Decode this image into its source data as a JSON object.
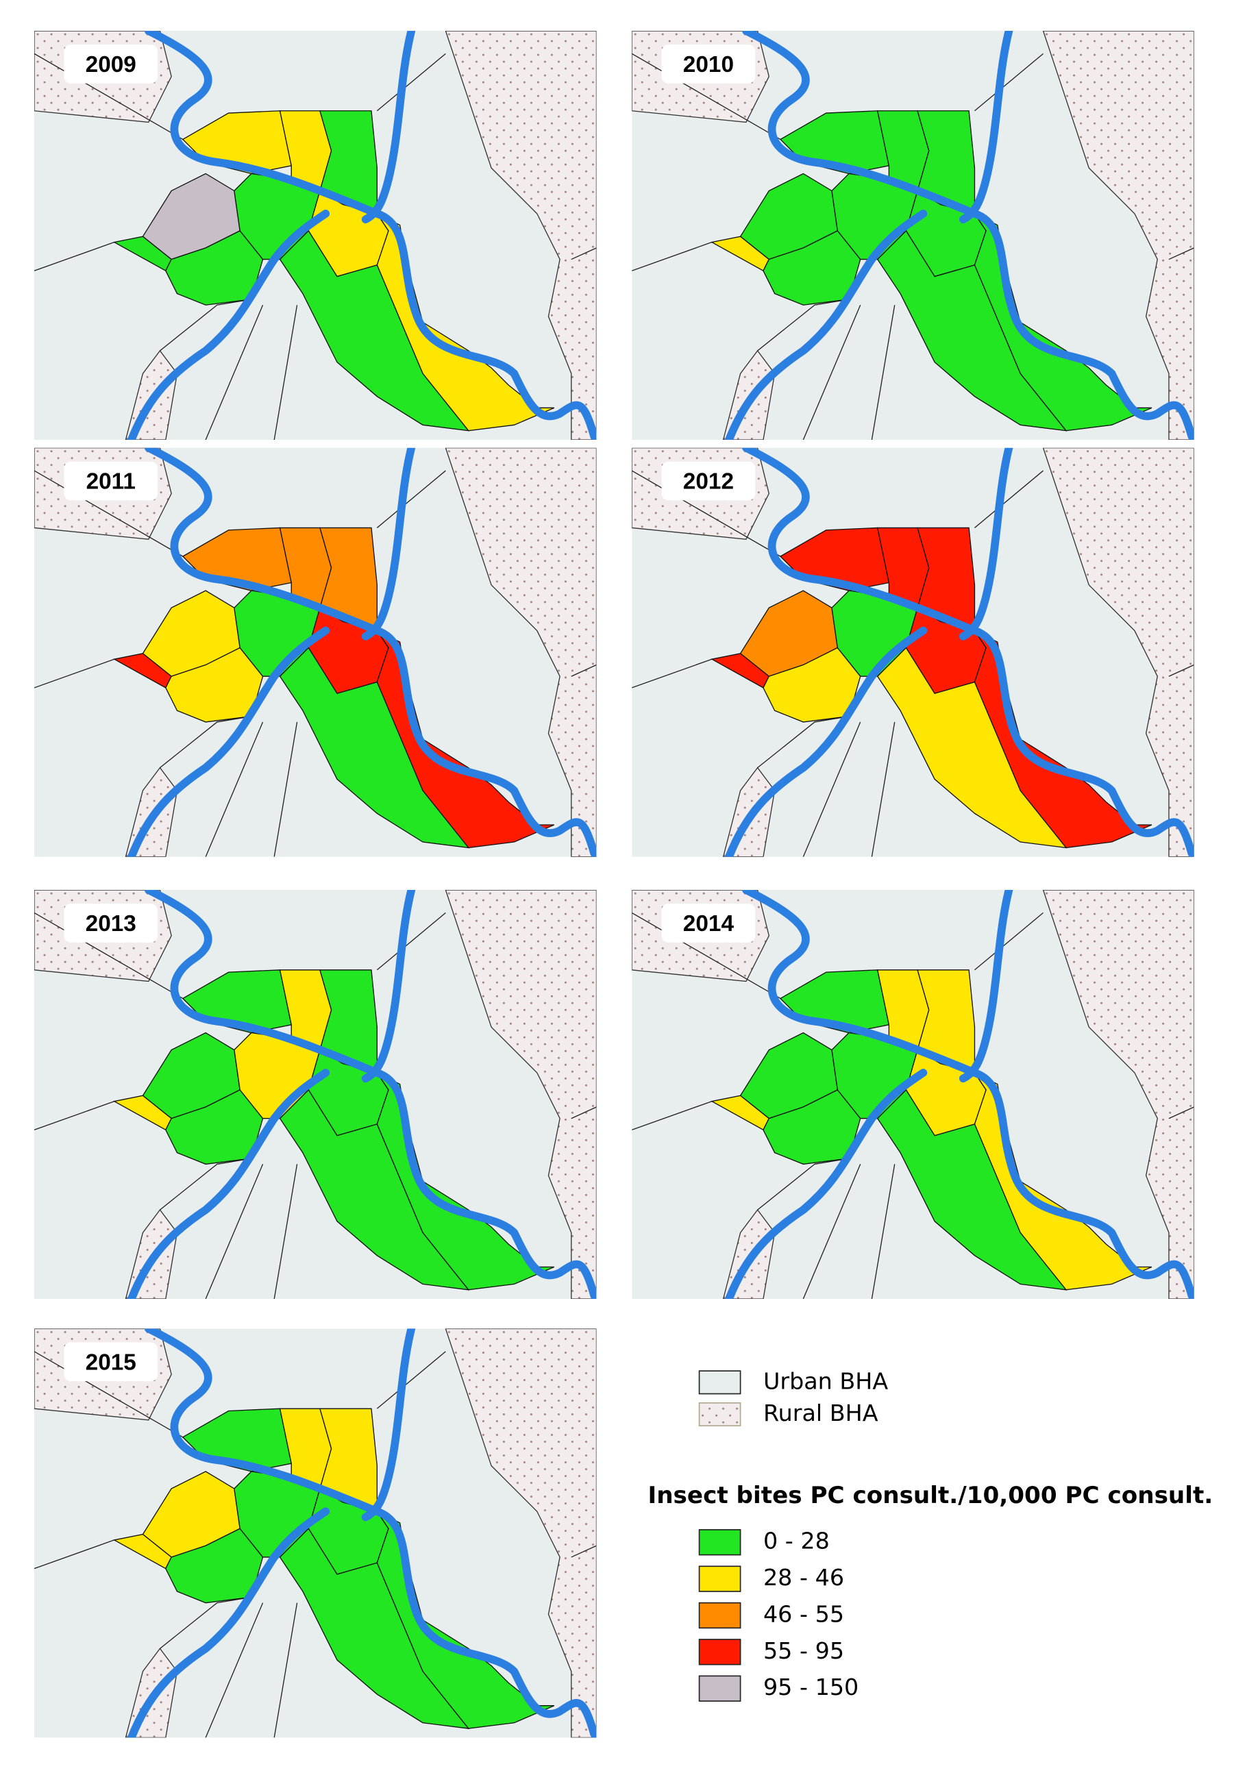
{
  "panels": [
    {
      "year": "2009",
      "district_colors": [
        "#ffe600",
        "#ffe600",
        "#22e622",
        "#c8bec8",
        "#22e622",
        "#22e622",
        "#22e622",
        "#ffe600",
        "#ffe600",
        "#22e622"
      ]
    },
    {
      "year": "2010",
      "district_colors": [
        "#22e622",
        "#22e622",
        "#22e622",
        "#22e622",
        "#ffe600",
        "#22e622",
        "#22e622",
        "#22e622",
        "#22e622",
        "#22e622"
      ]
    },
    {
      "year": "2011",
      "district_colors": [
        "#ff8c00",
        "#ff8c00",
        "#ff8c00",
        "#ffe600",
        "#ff1a00",
        "#ffe600",
        "#22e622",
        "#ff1a00",
        "#ff1a00",
        "#22e622"
      ]
    },
    {
      "year": "2012",
      "district_colors": [
        "#ff1a00",
        "#ff1a00",
        "#ff1a00",
        "#ff8c00",
        "#ff1a00",
        "#ffe600",
        "#22e622",
        "#ff1a00",
        "#ff1a00",
        "#ffe600"
      ]
    },
    {
      "year": "2013",
      "district_colors": [
        "#22e622",
        "#ffe600",
        "#22e622",
        "#22e622",
        "#ffe600",
        "#22e622",
        "#ffe600",
        "#22e622",
        "#22e622",
        "#22e622"
      ]
    },
    {
      "year": "2014",
      "district_colors": [
        "#22e622",
        "#ffe600",
        "#ffe600",
        "#22e622",
        "#ffe600",
        "#22e622",
        "#22e622",
        "#ffe600",
        "#ffe600",
        "#22e622"
      ]
    },
    {
      "year": "2015",
      "district_colors": [
        "#22e622",
        "#ffe600",
        "#ffe600",
        "#ffe600",
        "#ffe600",
        "#22e622",
        "#22e622",
        "#22e622",
        "#22e622",
        "#22e622"
      ]
    }
  ],
  "legend": {
    "areas": [
      {
        "label": "Urban BHA"
      },
      {
        "label": "Rural BHA"
      }
    ],
    "title": "Insect bites PC consult./10,000 PC consult.",
    "classes": [
      {
        "label": "0 - 28",
        "color": "#22e622"
      },
      {
        "label": "28 - 46",
        "color": "#ffe600"
      },
      {
        "label": "46 - 55",
        "color": "#ff8c00"
      },
      {
        "label": "55 - 95",
        "color": "#ff1a00"
      },
      {
        "label": "95 - 150",
        "color": "#c8bec8"
      }
    ]
  }
}
